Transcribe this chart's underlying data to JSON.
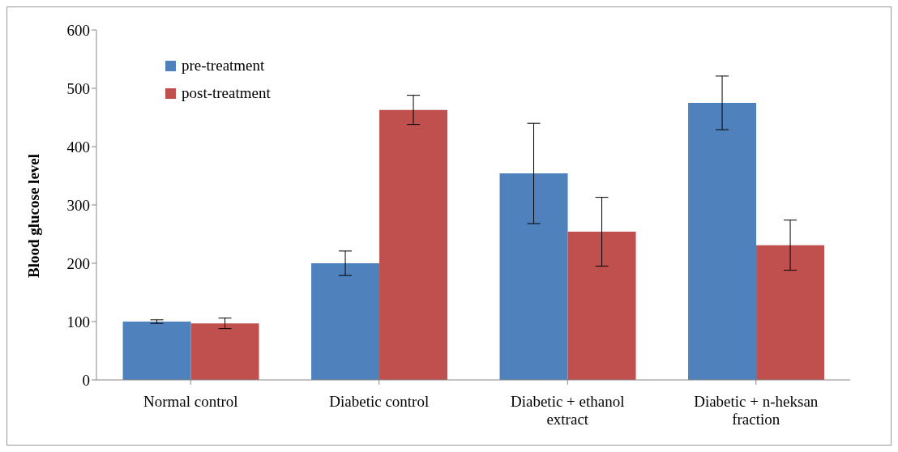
{
  "chart_data": {
    "type": "bar",
    "ylabel": "Blood glucose level",
    "categories": [
      "Normal control",
      "Diabetic control",
      "Diabetic + ethanol extract",
      "Diabetic + n-heksan fraction"
    ],
    "series": [
      {
        "name": "pre-treatment",
        "color": "#4f81bd",
        "values": [
          100,
          200,
          354,
          475
        ],
        "errors": [
          3,
          21,
          86,
          46
        ]
      },
      {
        "name": "post-treatment",
        "color": "#c0504d",
        "values": [
          97,
          463,
          254,
          231
        ],
        "errors": [
          9,
          25,
          59,
          43
        ]
      }
    ],
    "ylim": [
      0,
      600
    ],
    "yticks": [
      0,
      100,
      200,
      300,
      400,
      500,
      600
    ],
    "grid": false,
    "legend": "top left"
  }
}
